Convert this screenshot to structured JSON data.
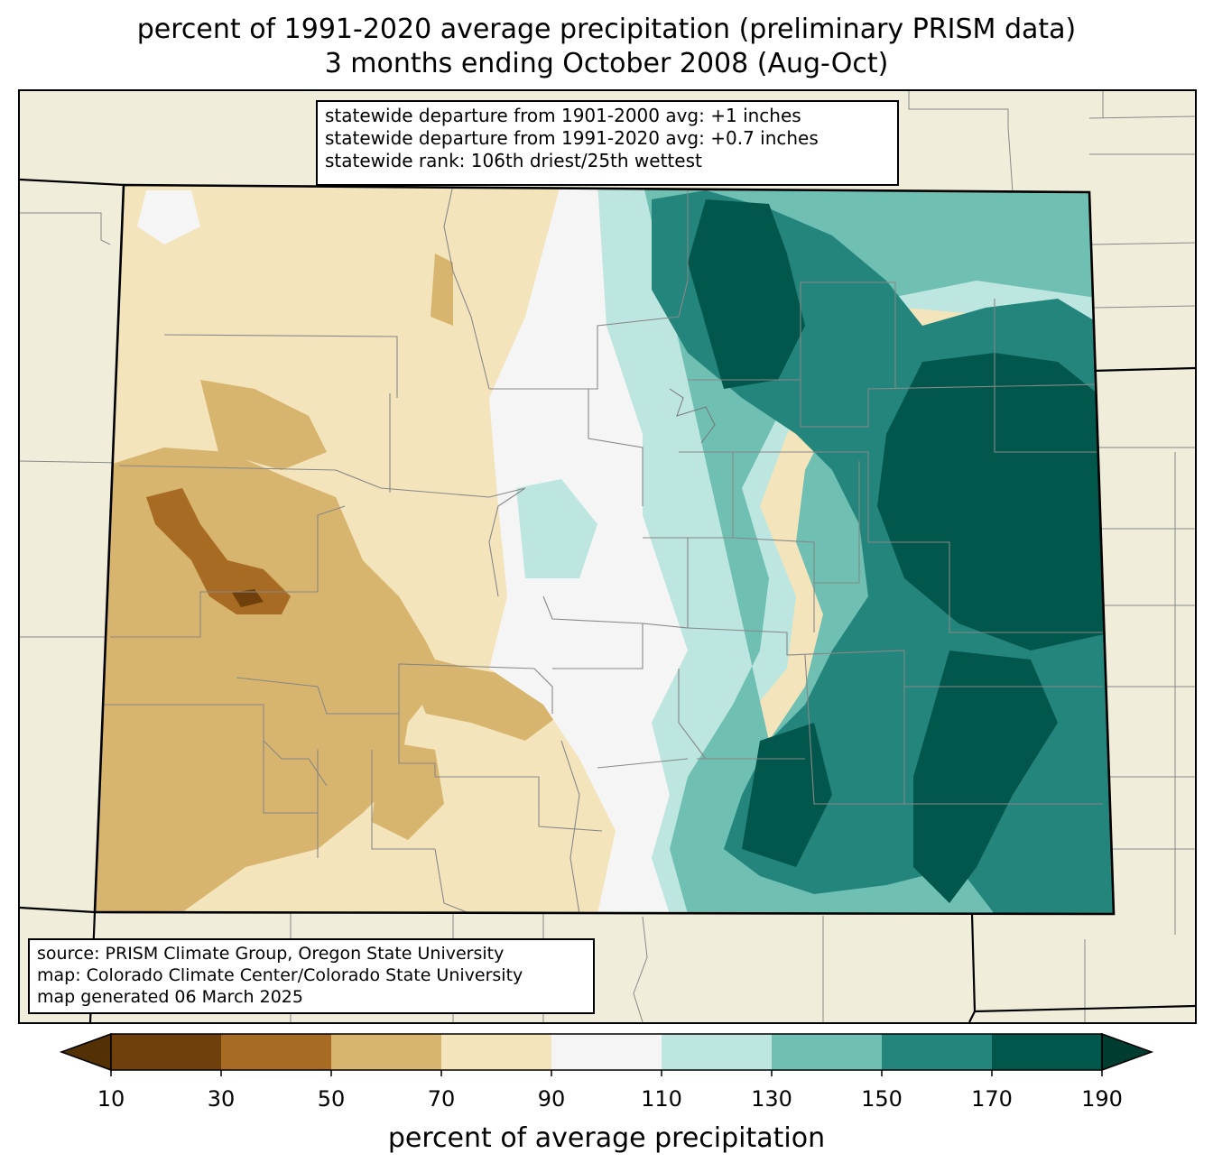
{
  "title": {
    "line1": "percent of 1991-2020 average precipitation (preliminary PRISM data)",
    "line2": "3 months ending October 2008 (Aug-Oct)"
  },
  "stats": {
    "line1": "statewide departure from 1901-2000 avg: +1 inches",
    "line2": "statewide departure from 1991-2020 avg: +0.7 inches",
    "line3": "statewide rank: 106th driest/25th wettest"
  },
  "source": {
    "line1": "source: PRISM Climate Group, Oregon State University",
    "line2": "map: Colorado Climate Center/Colorado State University",
    "line3": "map generated 06 March 2025"
  },
  "colorbar": {
    "label": "percent of average precipitation",
    "ticks": [
      "10",
      "30",
      "50",
      "70",
      "90",
      "110",
      "130",
      "150",
      "170",
      "190"
    ],
    "colors": [
      "#543005",
      "#8c510a",
      "#bf812d",
      "#dfc27d",
      "#f6e8c3",
      "#f5f5f5",
      "#c7eae5",
      "#80cdc1",
      "#35978f",
      "#01665e",
      "#003c30"
    ]
  },
  "legend_bins": [
    {
      "min": 10,
      "max": 30,
      "color": "#6f400b"
    },
    {
      "min": 30,
      "max": 50,
      "color": "#a86b24"
    },
    {
      "min": 50,
      "max": 70,
      "color": "#d8b56e"
    },
    {
      "min": 70,
      "max": 90,
      "color": "#f3e4bb"
    },
    {
      "min": 90,
      "max": 110,
      "color": "#f4f5f4"
    },
    {
      "min": 110,
      "max": 130,
      "color": "#bde6e0"
    },
    {
      "min": 130,
      "max": 150,
      "color": "#6fbfb2"
    },
    {
      "min": 150,
      "max": 170,
      "color": "#23857c"
    },
    {
      "min": 170,
      "max": 190,
      "color": "#02574d"
    }
  ],
  "colors": {
    "background": "#f0eedb",
    "county_lines": "#888888",
    "state_lines": "#000000"
  }
}
